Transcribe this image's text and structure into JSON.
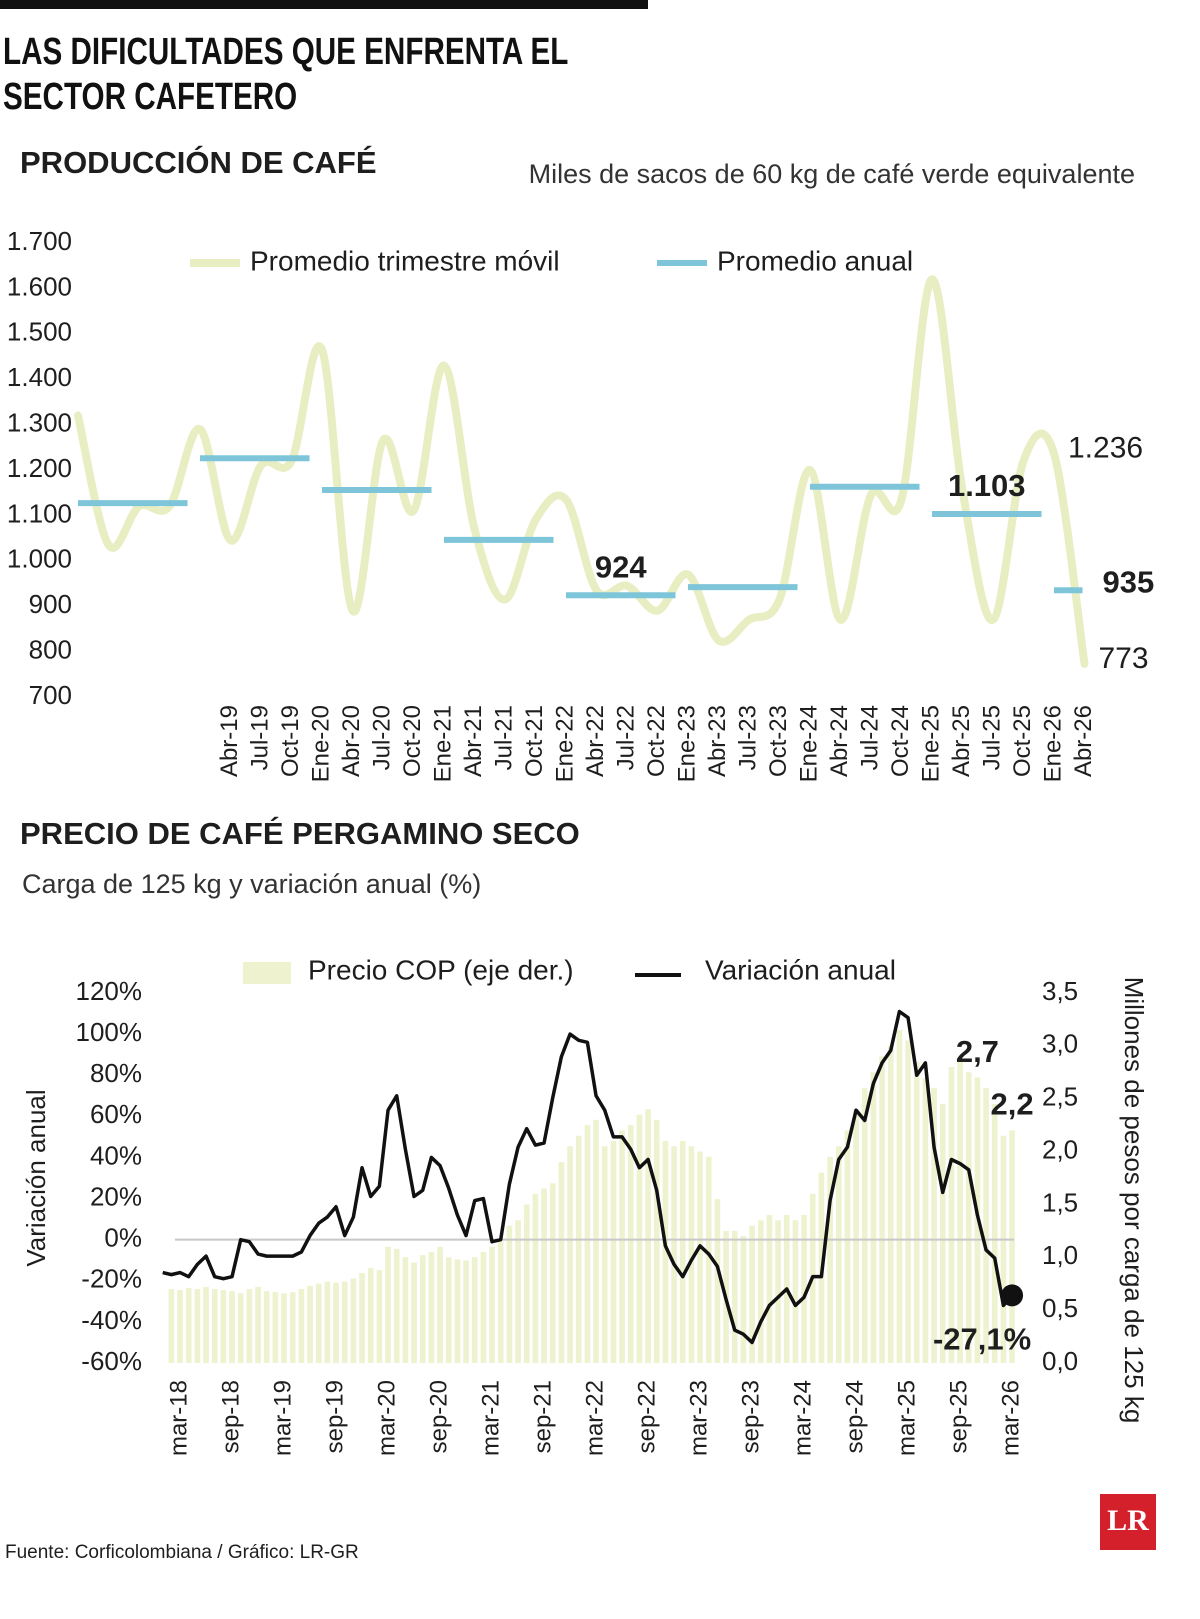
{
  "header": {
    "title": "LAS DIFICULTADES QUE ENFRENTA EL SECTOR CAFETERO"
  },
  "chart_data": [
    {
      "type": "line",
      "title": "PRODUCCIÓN DE CAFÉ",
      "subtitle": "Miles de sacos de 60 kg de café verde equivalente",
      "categories": [
        null,
        null,
        null,
        null,
        null,
        "Abr-19",
        "Jul-19",
        "Oct-19",
        "Ene-20",
        "Abr-20",
        "Jul-20",
        "Oct-20",
        "Ene-21",
        "Abr-21",
        "Jul-21",
        "Oct-21",
        "Ene-22",
        "Abr-22",
        "Jul-22",
        "Oct-22",
        "Ene-23",
        "Abr-23",
        "Jul-23",
        "Oct-23",
        "Ene-24",
        "Abr-24",
        "Jul-24",
        "Oct-24",
        "Ene-25",
        "Abr-25",
        "Jul-25",
        "Oct-25",
        "Ene-26",
        "Abr-26"
      ],
      "ylim": [
        700,
        1700
      ],
      "yticks": [
        {
          "value": 1700,
          "label": "1.700"
        },
        {
          "value": 1600,
          "label": "1.600"
        },
        {
          "value": 1500,
          "label": "1.500"
        },
        {
          "value": 1400,
          "label": "1.400"
        },
        {
          "value": 1300,
          "label": "1.300"
        },
        {
          "value": 1200,
          "label": "1.200"
        },
        {
          "value": 1100,
          "label": "1.100"
        },
        {
          "value": 1000,
          "label": "1.000"
        },
        900,
        800,
        700
      ],
      "series": [
        {
          "name": "Promedio trimestre móvil",
          "type": "line",
          "color": "#e8eec2",
          "values": [
            1320,
            1035,
            1120,
            1120,
            1290,
            1045,
            1210,
            1220,
            1465,
            890,
            1265,
            1110,
            1430,
            1070,
            915,
            1090,
            1135,
            935,
            945,
            890,
            970,
            825,
            870,
            915,
            1200,
            870,
            1145,
            1135,
            1620,
            1155,
            870,
            1220,
            1236,
            773
          ],
          "value_labels": [
            null,
            null,
            null,
            null,
            null,
            null,
            null,
            null,
            null,
            null,
            null,
            null,
            null,
            null,
            null,
            null,
            null,
            null,
            null,
            null,
            null,
            null,
            null,
            null,
            null,
            null,
            null,
            null,
            null,
            null,
            null,
            null,
            "1.236",
            "773"
          ]
        },
        {
          "name": "Promedio anual",
          "type": "segment",
          "color": "#7ec5da",
          "values": [
            1127,
            null,
            null,
            null,
            1226,
            null,
            null,
            null,
            1156,
            null,
            null,
            null,
            1046,
            null,
            null,
            null,
            924,
            null,
            null,
            null,
            942,
            null,
            null,
            null,
            1163,
            null,
            null,
            null,
            1103,
            null,
            null,
            null,
            935,
            null
          ],
          "value_labels": [
            null,
            null,
            null,
            null,
            null,
            null,
            null,
            null,
            null,
            null,
            null,
            null,
            null,
            null,
            null,
            null,
            "924",
            null,
            null,
            null,
            null,
            null,
            null,
            null,
            null,
            null,
            null,
            null,
            "1.103",
            null,
            null,
            null,
            "935",
            null
          ]
        }
      ]
    },
    {
      "type": "combo",
      "title": "PRECIO DE CAFÉ PERGAMINO SECO",
      "subtitle": "Carga de 125 kg y variación anual (%)",
      "ylabel": "Variación anual",
      "y2label": "Millones de pesos por carga de 125 kg",
      "zero_line": true,
      "categories": [
        null,
        null,
        "mar-18",
        null,
        null,
        null,
        null,
        null,
        "sep-18",
        null,
        null,
        null,
        null,
        null,
        "mar-19",
        null,
        null,
        null,
        null,
        null,
        "sep-19",
        null,
        null,
        null,
        null,
        null,
        "mar-20",
        null,
        null,
        null,
        null,
        null,
        "sep-20",
        null,
        null,
        null,
        null,
        null,
        "mar-21",
        null,
        null,
        null,
        null,
        null,
        "sep-21",
        null,
        null,
        null,
        null,
        null,
        "mar-22",
        null,
        null,
        null,
        null,
        null,
        "sep-22",
        null,
        null,
        null,
        null,
        null,
        "mar-23",
        null,
        null,
        null,
        null,
        null,
        "sep-23",
        null,
        null,
        null,
        null,
        null,
        "mar-24",
        null,
        null,
        null,
        null,
        null,
        "sep-24",
        null,
        null,
        null,
        null,
        null,
        "mar-25",
        null,
        null,
        null,
        null,
        null,
        "sep-25",
        null,
        null,
        null,
        null,
        null,
        "mar-26"
      ],
      "ylim": [
        -60,
        120
      ],
      "yticks": [
        {
          "value": 120,
          "label": "120%"
        },
        {
          "value": 100,
          "label": "100%"
        },
        {
          "value": 80,
          "label": "80%"
        },
        {
          "value": 60,
          "label": "60%"
        },
        {
          "value": 40,
          "label": "40%"
        },
        {
          "value": 20,
          "label": "20%"
        },
        {
          "value": 0,
          "label": "0%"
        },
        {
          "value": -20,
          "label": "-20%"
        },
        {
          "value": -40,
          "label": "-40%"
        },
        {
          "value": -60,
          "label": "-60%"
        }
      ],
      "y2lim": [
        0,
        3.5
      ],
      "y2ticks": [
        {
          "value": 3.5,
          "label": "3,5"
        },
        {
          "value": 3,
          "label": "3,0"
        },
        {
          "value": 2.5,
          "label": "2,5"
        },
        {
          "value": 2,
          "label": "2,0"
        },
        {
          "value": 1.5,
          "label": "1,5"
        },
        {
          "value": 1,
          "label": "1,0"
        },
        {
          "value": 0.5,
          "label": "0,5"
        },
        {
          "value": 0,
          "label": "0,0"
        }
      ],
      "series": [
        {
          "name": "Precio COP (eje der.)",
          "type": "bar",
          "axis": "y2",
          "color": "#eef2cf",
          "values": [
            null,
            0.7,
            0.69,
            0.71,
            0.7,
            0.72,
            0.7,
            0.69,
            0.68,
            0.66,
            0.7,
            0.72,
            0.68,
            0.67,
            0.66,
            0.67,
            0.7,
            0.73,
            0.75,
            0.77,
            0.76,
            0.77,
            0.8,
            0.85,
            0.9,
            0.88,
            1.1,
            1.08,
            1.0,
            0.95,
            1.02,
            1.05,
            1.1,
            1.0,
            0.98,
            0.97,
            1.0,
            1.05,
            1.1,
            1.15,
            1.3,
            1.35,
            1.5,
            1.6,
            1.65,
            1.7,
            1.9,
            2.05,
            2.15,
            2.25,
            2.3,
            2.05,
            2.1,
            2.2,
            2.25,
            2.35,
            2.4,
            2.3,
            2.1,
            2.05,
            2.1,
            2.05,
            2.0,
            1.95,
            1.55,
            1.25,
            1.25,
            1.2,
            1.3,
            1.35,
            1.4,
            1.35,
            1.4,
            1.35,
            1.4,
            1.6,
            1.8,
            1.95,
            2.05,
            2.2,
            2.4,
            2.6,
            2.75,
            2.9,
            3.0,
            3.15,
            3.05,
            2.85,
            2.7,
            2.6,
            2.45,
            2.8,
            2.85,
            2.75,
            2.7,
            2.6,
            2.45,
            2.15,
            2.2
          ],
          "value_labels": [
            null,
            null,
            null,
            null,
            null,
            null,
            null,
            null,
            null,
            null,
            null,
            null,
            null,
            null,
            null,
            null,
            null,
            null,
            null,
            null,
            null,
            null,
            null,
            null,
            null,
            null,
            null,
            null,
            null,
            null,
            null,
            null,
            null,
            null,
            null,
            null,
            null,
            null,
            null,
            null,
            null,
            null,
            null,
            null,
            null,
            null,
            null,
            null,
            null,
            null,
            null,
            null,
            null,
            null,
            null,
            null,
            null,
            null,
            null,
            null,
            null,
            null,
            null,
            null,
            null,
            null,
            null,
            null,
            null,
            null,
            null,
            null,
            null,
            null,
            null,
            null,
            null,
            null,
            null,
            null,
            null,
            null,
            null,
            null,
            null,
            null,
            null,
            null,
            null,
            null,
            null,
            null,
            null,
            null,
            "2,7",
            null,
            null,
            null,
            "2,2"
          ]
        },
        {
          "name": "Variación anual",
          "type": "line",
          "color": "#111111",
          "values": [
            -16,
            -17,
            -16,
            -18,
            -12,
            -8,
            -18,
            -19,
            -18,
            0,
            -1,
            -7,
            -8,
            -8,
            -8,
            -8,
            -6,
            2,
            8,
            11,
            16,
            2,
            11,
            35,
            21,
            26,
            63,
            70,
            44,
            21,
            24,
            40,
            36,
            25,
            12,
            2,
            19,
            20,
            -1,
            0,
            27,
            45,
            54,
            46,
            47,
            69,
            89,
            100,
            97,
            96,
            70,
            63,
            50,
            50,
            44,
            35,
            39,
            24,
            -3,
            -12,
            -18,
            -10,
            -3,
            -7,
            -13,
            -29,
            -44,
            -46,
            -50,
            -40,
            -32,
            -28,
            -24,
            -32,
            -28,
            -18,
            -18,
            19,
            39,
            45,
            63,
            58,
            76,
            86,
            92,
            111,
            108,
            80,
            86,
            45,
            23,
            39,
            37,
            34,
            12,
            -5,
            -9,
            -32,
            -27.1
          ],
          "value_labels": [
            null,
            null,
            null,
            null,
            null,
            null,
            null,
            null,
            null,
            null,
            null,
            null,
            null,
            null,
            null,
            null,
            null,
            null,
            null,
            null,
            null,
            null,
            null,
            null,
            null,
            null,
            null,
            null,
            null,
            null,
            null,
            null,
            null,
            null,
            null,
            null,
            null,
            null,
            null,
            null,
            null,
            null,
            null,
            null,
            null,
            null,
            null,
            null,
            null,
            null,
            null,
            null,
            null,
            null,
            null,
            null,
            null,
            null,
            null,
            null,
            null,
            null,
            null,
            null,
            null,
            null,
            null,
            null,
            null,
            null,
            null,
            null,
            null,
            null,
            null,
            null,
            null,
            null,
            null,
            null,
            null,
            null,
            null,
            null,
            null,
            null,
            null,
            null,
            null,
            null,
            null,
            null,
            null,
            null,
            null,
            null,
            null,
            null,
            "-27,1%"
          ]
        }
      ]
    }
  ],
  "footer": {
    "source": "Fuente: Corficolombiana / Gráfico: LR-GR",
    "logo": "LR"
  }
}
